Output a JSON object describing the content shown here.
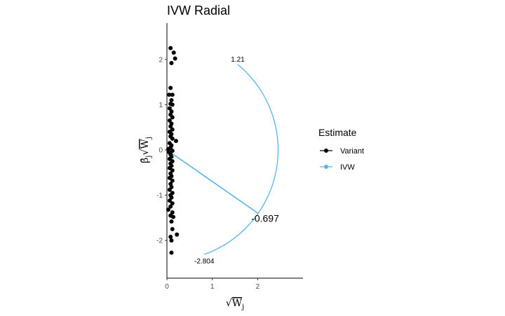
{
  "chart_data": {
    "type": "scatter",
    "title": "IVW Radial",
    "xlim": [
      0,
      3
    ],
    "ylim": [
      -2.8,
      2.8
    ],
    "x_ticks": [
      0,
      1,
      2
    ],
    "y_ticks": [
      -2,
      -1,
      0,
      1,
      2
    ],
    "legend": {
      "title": "Estimate",
      "placement": "right",
      "items": [
        {
          "label": "Variant",
          "color": "#000000"
        },
        {
          "label": "IVW",
          "color": "#56B4E9"
        }
      ]
    },
    "ivw_estimate": -0.697,
    "arc_upper_label": "1.21",
    "arc_lower_label": "-2.804",
    "arc_radius": 2.45,
    "series": [
      {
        "name": "Variant",
        "points": [
          [
            0.08,
            2.25
          ],
          [
            0.15,
            2.15
          ],
          [
            0.18,
            2.02
          ],
          [
            0.1,
            1.92
          ],
          [
            0.08,
            1.37
          ],
          [
            0.05,
            1.22
          ],
          [
            0.12,
            1.22
          ],
          [
            0.1,
            1.1
          ],
          [
            0.08,
            1.02
          ],
          [
            0.12,
            1.0
          ],
          [
            0.06,
            0.92
          ],
          [
            0.1,
            0.85
          ],
          [
            0.08,
            0.78
          ],
          [
            0.12,
            0.72
          ],
          [
            0.06,
            0.65
          ],
          [
            0.1,
            0.58
          ],
          [
            0.08,
            0.52
          ],
          [
            0.12,
            0.45
          ],
          [
            0.06,
            0.4
          ],
          [
            0.1,
            0.35
          ],
          [
            0.08,
            0.3
          ],
          [
            0.12,
            0.25
          ],
          [
            0.2,
            0.2
          ],
          [
            0.06,
            0.15
          ],
          [
            0.1,
            0.1
          ],
          [
            0.08,
            0.05
          ],
          [
            0.03,
            0.02
          ],
          [
            0.12,
            -0.02
          ],
          [
            0.05,
            -0.05
          ],
          [
            0.08,
            -0.1
          ],
          [
            0.1,
            -0.15
          ],
          [
            0.06,
            -0.2
          ],
          [
            0.12,
            -0.25
          ],
          [
            0.08,
            -0.3
          ],
          [
            0.1,
            -0.35
          ],
          [
            0.06,
            -0.4
          ],
          [
            0.12,
            -0.45
          ],
          [
            0.08,
            -0.52
          ],
          [
            0.1,
            -0.58
          ],
          [
            0.06,
            -0.62
          ],
          [
            0.12,
            -0.68
          ],
          [
            0.08,
            -0.75
          ],
          [
            0.1,
            -0.82
          ],
          [
            0.06,
            -0.88
          ],
          [
            0.12,
            -0.95
          ],
          [
            0.08,
            -1.0
          ],
          [
            0.1,
            -1.05
          ],
          [
            0.06,
            -1.12
          ],
          [
            0.12,
            -1.18
          ],
          [
            0.08,
            -1.25
          ],
          [
            0.03,
            -1.32
          ],
          [
            0.12,
            -1.38
          ],
          [
            0.08,
            -1.45
          ],
          [
            0.14,
            -1.48
          ],
          [
            0.1,
            -1.58
          ],
          [
            0.12,
            -1.75
          ],
          [
            0.22,
            -1.87
          ],
          [
            0.08,
            -1.92
          ],
          [
            0.1,
            -2.0
          ],
          [
            0.1,
            -2.27
          ]
        ]
      }
    ]
  }
}
